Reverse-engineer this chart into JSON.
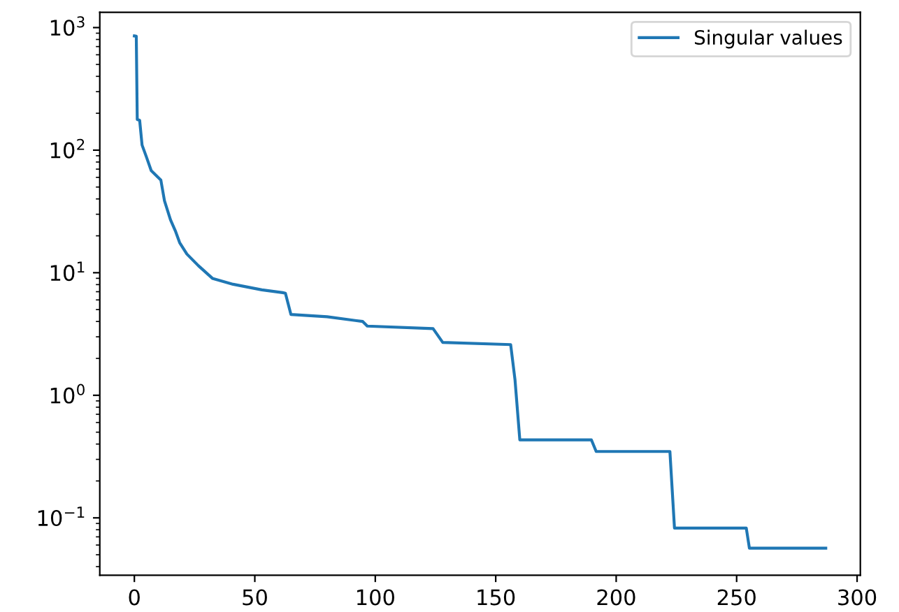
{
  "chart_data": {
    "type": "line",
    "log": "y",
    "legend": "top right",
    "marker": "none",
    "line_style": "solid",
    "grid": false,
    "xlim": [
      -14.35,
      301.35
    ],
    "xticks": [
      0,
      50,
      100,
      150,
      200,
      250,
      300
    ],
    "ylim": [
      0.034,
      1334
    ],
    "yticks": [
      {
        "value": 0.1,
        "label": "10$^{−1}$"
      },
      {
        "value": 1,
        "label": "10$^{0}$"
      },
      {
        "value": 10,
        "label": "10$^{1}$"
      },
      {
        "value": 100,
        "label": "10$^{2}$"
      },
      {
        "value": 1000,
        "label": "10$^{3}$"
      }
    ],
    "series": [
      {
        "name": "Singular values",
        "color": "#1f77b4",
        "x": [
          0,
          0.8,
          1.2,
          2.2,
          3.2,
          5,
          7,
          11,
          12.5,
          15,
          17,
          18.8,
          21.8,
          26.6,
          32.4,
          41,
          52.9,
          61.6,
          62.7,
          65,
          80,
          94.8,
          96.7,
          124,
          128,
          156.2,
          158,
          160,
          189.7,
          191.7,
          222.3,
          224.2,
          254,
          255.3,
          287
        ],
        "values": [
          855,
          850,
          178,
          175,
          110,
          88,
          68,
          57,
          38.6,
          27,
          22,
          17.6,
          14.2,
          11.4,
          9.0,
          8.05,
          7.25,
          6.88,
          6.8,
          4.56,
          4.37,
          4.0,
          3.67,
          3.5,
          2.7,
          2.59,
          1.34,
          0.433,
          0.433,
          0.348,
          0.348,
          0.0826,
          0.0826,
          0.0566,
          0.0566
        ]
      }
    ]
  }
}
